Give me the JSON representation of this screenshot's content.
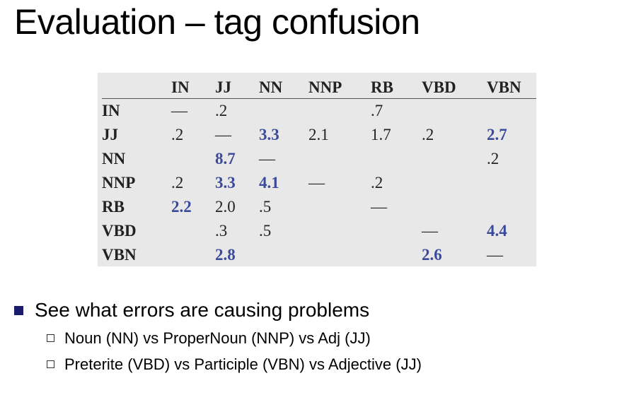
{
  "title": "Evaluation – tag confusion",
  "matrix": {
    "columns": [
      "",
      "IN",
      "JJ",
      "NN",
      "NNP",
      "RB",
      "VBD",
      "VBN"
    ],
    "rows": [
      {
        "label": "IN",
        "cells": [
          "—",
          ".2",
          "",
          "",
          ".7",
          "",
          ""
        ]
      },
      {
        "label": "JJ",
        "cells": [
          ".2",
          "—",
          "3.3",
          "2.1",
          "1.7",
          ".2",
          "2.7"
        ]
      },
      {
        "label": "NN",
        "cells": [
          "",
          "8.7",
          "—",
          "",
          "",
          "",
          ".2"
        ]
      },
      {
        "label": "NNP",
        "cells": [
          ".2",
          "3.3",
          "4.1",
          "—",
          ".2",
          "",
          ""
        ]
      },
      {
        "label": "RB",
        "cells": [
          "2.2",
          "2.0",
          ".5",
          "",
          "—",
          "",
          ""
        ]
      },
      {
        "label": "VBD",
        "cells": [
          "",
          ".3",
          ".5",
          "",
          "",
          "—",
          "4.4"
        ]
      },
      {
        "label": "VBN",
        "cells": [
          "",
          "2.8",
          "",
          "",
          "",
          "2.6",
          "—"
        ]
      }
    ],
    "highlight_color": "#3b4a9a"
  },
  "bullets": {
    "main": "See what errors are causing problems",
    "sub": [
      "Noun (NN) vs ProperNoun (NNP) vs Adj (JJ)",
      "Preterite (VBD) vs Participle (VBN) vs Adjective (JJ)"
    ]
  }
}
